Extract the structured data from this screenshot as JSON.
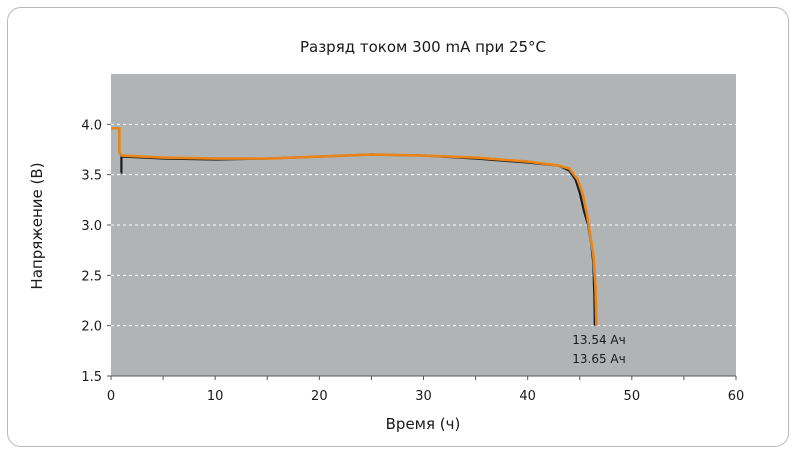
{
  "chart_data": {
    "type": "line",
    "title": "Разряд током 300 mA при 25°C",
    "xlabel": "Время (ч)",
    "ylabel": "Напряжение (В)",
    "xlim": [
      0,
      60
    ],
    "ylim": [
      1.5,
      4.5
    ],
    "x_ticks": [
      "0",
      "10",
      "20",
      "30",
      "40",
      "50",
      "60"
    ],
    "y_ticks": [
      "1.5",
      "2.0",
      "2.5",
      "3.0",
      "3.5",
      "4.0"
    ],
    "grid": true,
    "background_color": "#b1b4b4",
    "series": [
      {
        "color": "#1a1a1a",
        "x": [
          0.95,
          1.0,
          1.0,
          5,
          10,
          15,
          20,
          25,
          30,
          35,
          40,
          43,
          44,
          44.6,
          45.0,
          45.4,
          45.8,
          46.1,
          46.3,
          46.4,
          46.45
        ],
        "y": [
          3.52,
          3.52,
          3.68,
          3.66,
          3.65,
          3.66,
          3.68,
          3.7,
          3.69,
          3.66,
          3.62,
          3.59,
          3.54,
          3.45,
          3.32,
          3.14,
          3.0,
          2.82,
          2.62,
          2.3,
          2.0
        ]
      },
      {
        "color": "#e8841a",
        "x": [
          0,
          0.8,
          0.8,
          1.0,
          5,
          10,
          15,
          20,
          25,
          30,
          35,
          40,
          43,
          44,
          44.8,
          45.3,
          45.7,
          46.0,
          46.3,
          46.5,
          46.6
        ],
        "y": [
          3.96,
          3.96,
          3.72,
          3.69,
          3.67,
          3.66,
          3.66,
          3.68,
          3.7,
          3.69,
          3.67,
          3.63,
          3.59,
          3.56,
          3.45,
          3.3,
          3.1,
          2.9,
          2.7,
          2.4,
          2.0
        ]
      }
    ],
    "annotations": [
      "13.54 Ач",
      "13.65 Ач"
    ]
  }
}
